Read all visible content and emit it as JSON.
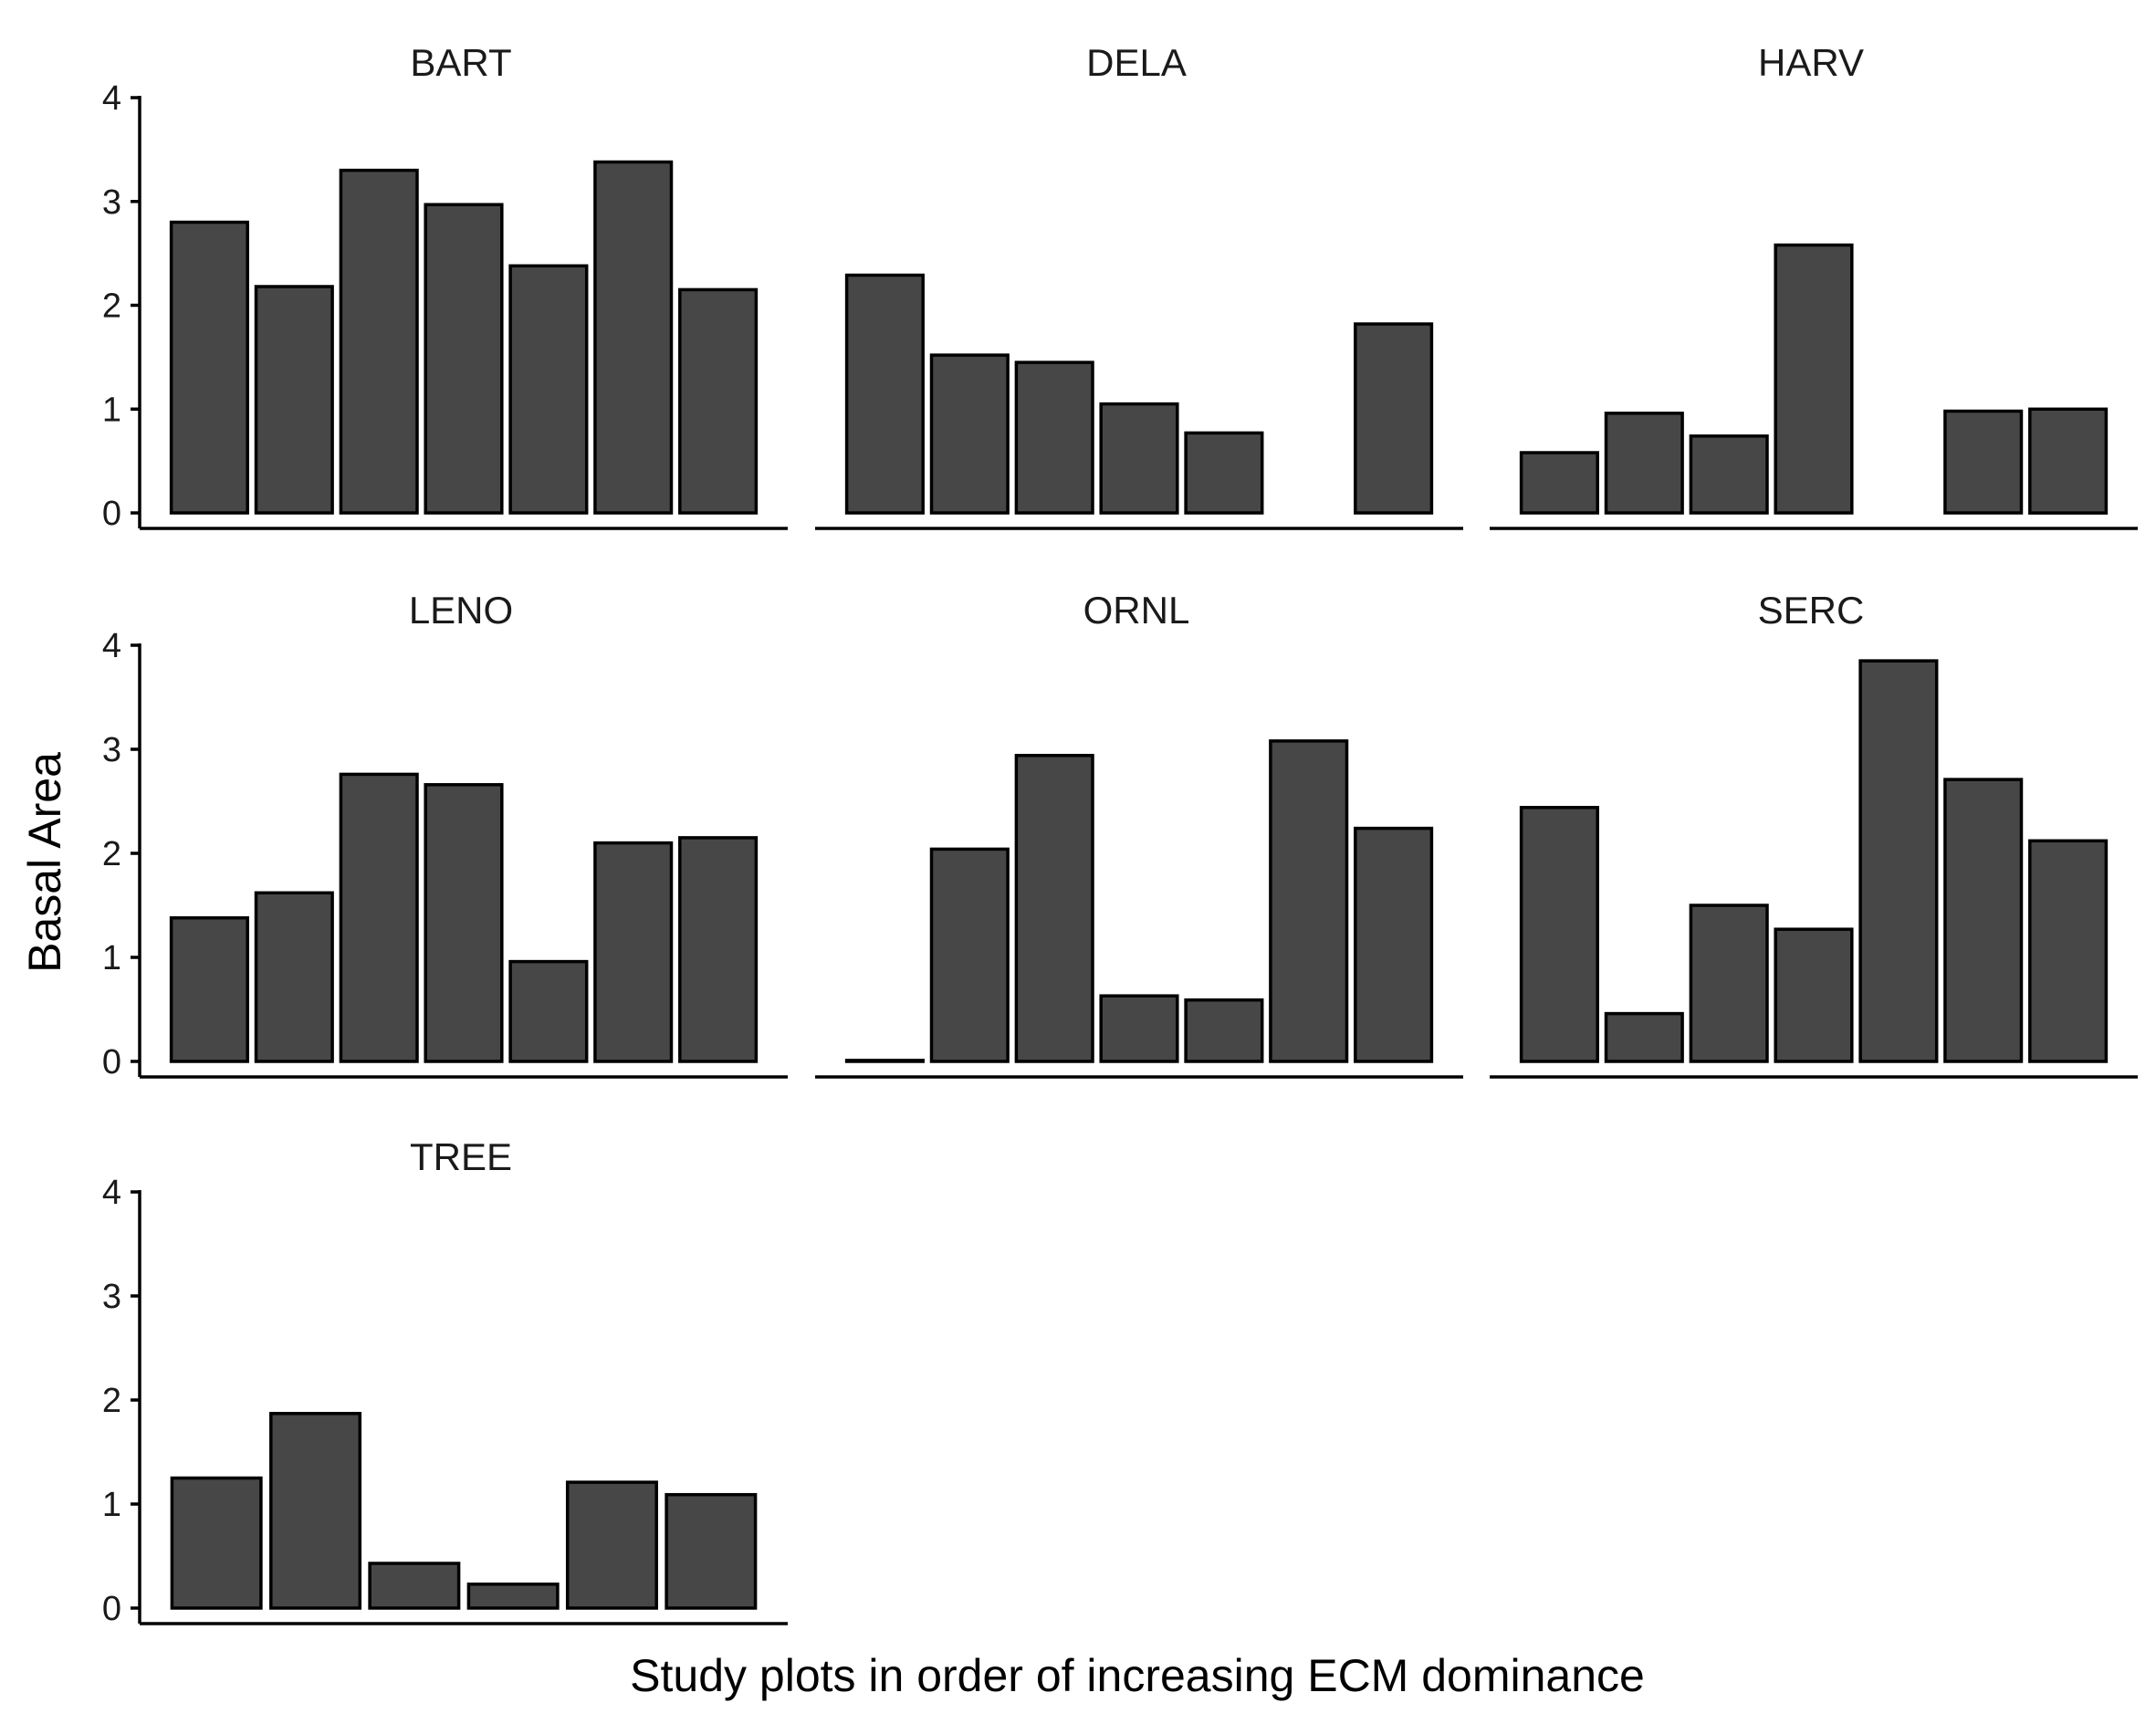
{
  "chart_data": {
    "type": "bar",
    "title": "",
    "xlabel": "Study plots in order of increasing ECM dominance",
    "ylabel": "Basal Area",
    "ylim": [
      0,
      4
    ],
    "yticks": [
      0,
      1,
      2,
      3,
      4
    ],
    "grid": false,
    "legend": "none",
    "bar_fill": "#474747",
    "bar_stroke": "#000000",
    "facets": [
      {
        "name": "BART",
        "values": [
          2.8,
          2.18,
          3.3,
          2.97,
          2.38,
          3.38,
          2.15
        ]
      },
      {
        "name": "DELA",
        "values": [
          2.29,
          1.52,
          1.45,
          1.05,
          0.77,
          null,
          1.82
        ]
      },
      {
        "name": "HARV",
        "values": [
          0.58,
          0.96,
          0.74,
          2.58,
          null,
          0.98,
          1.0
        ]
      },
      {
        "name": "LENO",
        "values": [
          1.38,
          1.62,
          2.76,
          2.66,
          0.96,
          2.1,
          2.15
        ]
      },
      {
        "name": "ORNL",
        "values": [
          0.01,
          2.04,
          2.94,
          0.63,
          0.59,
          3.08,
          2.24
        ]
      },
      {
        "name": "SERC",
        "values": [
          2.44,
          0.46,
          1.5,
          1.27,
          3.85,
          2.71,
          2.12
        ]
      },
      {
        "name": "TREE",
        "values": [
          1.25,
          1.87,
          0.43,
          0.23,
          1.21,
          1.09
        ]
      }
    ]
  }
}
